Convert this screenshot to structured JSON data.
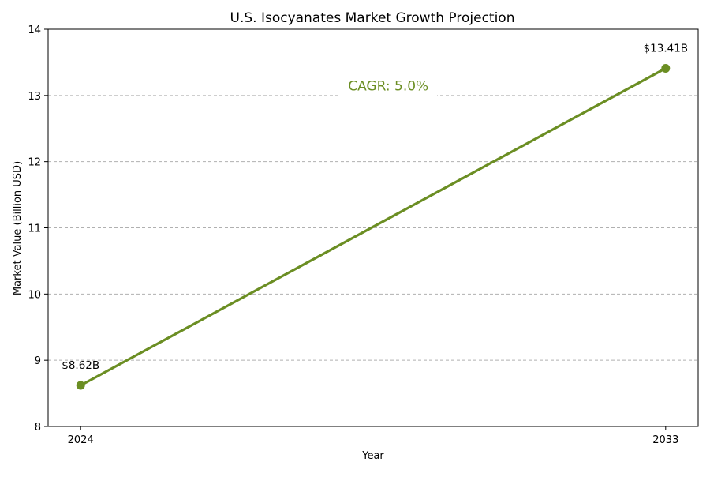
{
  "chart_data": {
    "type": "line",
    "title": "U.S. Isocyanates Market Growth Projection",
    "xlabel": "Year",
    "ylabel": "Market Value (Billion USD)",
    "x": [
      2024,
      2033
    ],
    "x_tick_labels": [
      "2024",
      "2033"
    ],
    "xlim": [
      2023.5,
      2033.5
    ],
    "ylim": [
      8,
      14
    ],
    "y_ticks": [
      8,
      9,
      10,
      11,
      12,
      13,
      14
    ],
    "grid": "horizontal dashed",
    "series": [
      {
        "values": [
          8.62,
          13.41
        ],
        "color": "#6b8e23",
        "data_labels": [
          "$8.62B",
          "$13.41B"
        ]
      }
    ],
    "annotations": [
      {
        "text": "CAGR: 5.0%",
        "x": 2029,
        "y": 13.15,
        "color": "#6b8e23"
      }
    ]
  }
}
